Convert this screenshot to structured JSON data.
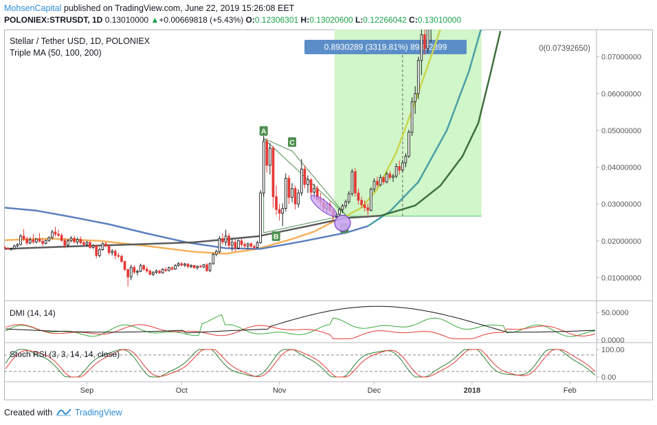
{
  "header": {
    "brand": "MohsenCapital",
    "published_text": "published on TradingView.com, June 22, 2019 15:26:08 EET",
    "symbol": "POLONIEX:STRUSDT, 1D",
    "last": "0.13010000",
    "change_arrow": "▲",
    "change": "+0.00669818 (+5.43%)",
    "o_label": "O:",
    "o_value": "0.12306301",
    "h_label": "H:",
    "h_value": "0.13020600",
    "l_label": "L:",
    "l_value": "0.12266042",
    "c_label": "C:",
    "c_value": "0.13010000"
  },
  "legend": {
    "title": "Stellar / Tether USD, 1D, POLONIEX",
    "indicator": "Triple MA (50, 100, 200)",
    "volume_readout": "0(0.07392650)"
  },
  "measure_label": "0.8930289 (3319.81%) 89302899",
  "pattern_labels": [
    "A",
    "B",
    "C",
    "D"
  ],
  "dmi_label": "DMI (14, 14)",
  "stoch_label": "Stoch RSI (3, 3, 14, 14, close)",
  "footer": {
    "created_with": "Created with",
    "brand": "TradingView"
  },
  "colors": {
    "up": "#26a69a",
    "down": "#ef5350",
    "candle_up": "#1b1b1b",
    "candle_down": "#e53935",
    "ma50": "#f7b05b",
    "ma100": "#5b7fbd",
    "ma200": "#5a5a5a",
    "ma50_late": "#c9d54a",
    "ma100_late": "#4a9fa6",
    "ma200_late": "#3c6e3c",
    "measure_fill": "#c8f5c0",
    "measure_label_bg": "#5b8ec8",
    "pattern_label": "#4f8f4f",
    "dmi_adx": "#111111",
    "dmi_plus": "#38a838",
    "dmi_minus": "#e53935",
    "stoch_k": "#2f7d2f",
    "stoch_d": "#e53935"
  },
  "chart_data": {
    "type": "candlestick",
    "y_ticks": [
      "0.07000000",
      "0.06000000",
      "0.05000000",
      "0.04000000",
      "0.03000000",
      "0.02000000",
      "0.01000000"
    ],
    "y_tick_values": [
      0.07,
      0.06,
      0.05,
      0.04,
      0.03,
      0.02,
      0.01
    ],
    "ylim": [
      0.0041,
      0.0774
    ],
    "x_ticks": [
      "Sep",
      "Oct",
      "Nov",
      "Dec",
      "2018",
      "Feb"
    ],
    "x_tick_dates": [
      "2017-09-01",
      "2017-10-01",
      "2017-11-01",
      "2017-12-01",
      "2018-01-01",
      "2018-02-01"
    ],
    "x_tick_bold": [
      false,
      false,
      false,
      false,
      true,
      false
    ],
    "xlim": [
      "2017-08-06",
      "2018-02-09"
    ],
    "candles": [
      [
        "2017-08-06",
        0.0182,
        0.0186,
        0.0178,
        0.018
      ],
      [
        "2017-08-07",
        0.018,
        0.0183,
        0.0176,
        0.0177
      ],
      [
        "2017-08-08",
        0.0177,
        0.0181,
        0.0173,
        0.0179
      ],
      [
        "2017-08-09",
        0.0179,
        0.019,
        0.0176,
        0.0186
      ],
      [
        "2017-08-10",
        0.0186,
        0.0194,
        0.0183,
        0.019
      ],
      [
        "2017-08-11",
        0.019,
        0.0218,
        0.0188,
        0.0213
      ],
      [
        "2017-08-12",
        0.0213,
        0.0232,
        0.02,
        0.0205
      ],
      [
        "2017-08-13",
        0.0205,
        0.0212,
        0.0189,
        0.0194
      ],
      [
        "2017-08-14",
        0.0194,
        0.021,
        0.0191,
        0.0203
      ],
      [
        "2017-08-15",
        0.0203,
        0.0218,
        0.0192,
        0.0197
      ],
      [
        "2017-08-16",
        0.0197,
        0.0208,
        0.0193,
        0.0205
      ],
      [
        "2017-08-17",
        0.0205,
        0.0221,
        0.0196,
        0.0199
      ],
      [
        "2017-08-18",
        0.0199,
        0.0206,
        0.0186,
        0.0193
      ],
      [
        "2017-08-19",
        0.0193,
        0.0204,
        0.019,
        0.0201
      ],
      [
        "2017-08-20",
        0.0201,
        0.0212,
        0.0197,
        0.0209
      ],
      [
        "2017-08-21",
        0.0209,
        0.023,
        0.0204,
        0.0224
      ],
      [
        "2017-08-22",
        0.0224,
        0.0238,
        0.0212,
        0.0218
      ],
      [
        "2017-08-23",
        0.0218,
        0.023,
        0.021,
        0.0215
      ],
      [
        "2017-08-24",
        0.0215,
        0.0221,
        0.0198,
        0.0201
      ],
      [
        "2017-08-25",
        0.0201,
        0.0207,
        0.018,
        0.0188
      ],
      [
        "2017-08-26",
        0.0188,
        0.0205,
        0.0184,
        0.02
      ],
      [
        "2017-08-27",
        0.02,
        0.0213,
        0.0196,
        0.0207
      ],
      [
        "2017-08-28",
        0.0207,
        0.0214,
        0.0193,
        0.0197
      ],
      [
        "2017-08-29",
        0.0197,
        0.0209,
        0.019,
        0.0204
      ],
      [
        "2017-08-30",
        0.0204,
        0.0212,
        0.019,
        0.0195
      ],
      [
        "2017-08-31",
        0.0195,
        0.0201,
        0.0186,
        0.019
      ],
      [
        "2017-09-01",
        0.019,
        0.02,
        0.0186,
        0.0196
      ],
      [
        "2017-09-02",
        0.0196,
        0.0199,
        0.0178,
        0.0182
      ],
      [
        "2017-09-03",
        0.0182,
        0.0191,
        0.0178,
        0.0187
      ],
      [
        "2017-09-04",
        0.0187,
        0.019,
        0.0152,
        0.016
      ],
      [
        "2017-09-05",
        0.016,
        0.0182,
        0.0155,
        0.0176
      ],
      [
        "2017-09-06",
        0.0176,
        0.0196,
        0.0173,
        0.0192
      ],
      [
        "2017-09-07",
        0.0192,
        0.0196,
        0.0183,
        0.0186
      ],
      [
        "2017-09-08",
        0.0186,
        0.0189,
        0.0162,
        0.0168
      ],
      [
        "2017-09-09",
        0.0168,
        0.0178,
        0.016,
        0.0172
      ],
      [
        "2017-09-10",
        0.0172,
        0.0176,
        0.015,
        0.016
      ],
      [
        "2017-09-11",
        0.016,
        0.0168,
        0.0154,
        0.0158
      ],
      [
        "2017-09-12",
        0.0158,
        0.0163,
        0.014,
        0.0144
      ],
      [
        "2017-09-13",
        0.0144,
        0.0146,
        0.0118,
        0.0122
      ],
      [
        "2017-09-14",
        0.0122,
        0.0124,
        0.0076,
        0.0102
      ],
      [
        "2017-09-15",
        0.0102,
        0.0135,
        0.0093,
        0.0128
      ],
      [
        "2017-09-16",
        0.0128,
        0.0134,
        0.011,
        0.0115
      ],
      [
        "2017-09-17",
        0.0115,
        0.0122,
        0.0106,
        0.0117
      ],
      [
        "2017-09-18",
        0.0117,
        0.0138,
        0.0115,
        0.0133
      ],
      [
        "2017-09-19",
        0.0133,
        0.0136,
        0.0119,
        0.0123
      ],
      [
        "2017-09-20",
        0.0123,
        0.013,
        0.0113,
        0.0118
      ],
      [
        "2017-09-21",
        0.0118,
        0.0122,
        0.0106,
        0.0109
      ],
      [
        "2017-09-22",
        0.0109,
        0.0118,
        0.0104,
        0.0114
      ],
      [
        "2017-09-23",
        0.0114,
        0.0122,
        0.011,
        0.0118
      ],
      [
        "2017-09-24",
        0.0118,
        0.0121,
        0.011,
        0.0113
      ],
      [
        "2017-09-25",
        0.0113,
        0.0126,
        0.0111,
        0.0122
      ],
      [
        "2017-09-26",
        0.0122,
        0.0128,
        0.0116,
        0.0119
      ],
      [
        "2017-09-27",
        0.0119,
        0.013,
        0.0117,
        0.0127
      ],
      [
        "2017-09-28",
        0.0127,
        0.013,
        0.012,
        0.0123
      ],
      [
        "2017-09-29",
        0.0123,
        0.0137,
        0.0121,
        0.0133
      ],
      [
        "2017-09-30",
        0.0133,
        0.0142,
        0.013,
        0.0138
      ],
      [
        "2017-10-01",
        0.0138,
        0.0143,
        0.0131,
        0.0134
      ],
      [
        "2017-10-02",
        0.0134,
        0.014,
        0.0129,
        0.0137
      ],
      [
        "2017-10-03",
        0.0137,
        0.0139,
        0.0126,
        0.013
      ],
      [
        "2017-10-04",
        0.013,
        0.0136,
        0.0126,
        0.0133
      ],
      [
        "2017-10-05",
        0.0133,
        0.0135,
        0.0124,
        0.0127
      ],
      [
        "2017-10-06",
        0.0127,
        0.0133,
        0.0122,
        0.0131
      ],
      [
        "2017-10-07",
        0.0131,
        0.0135,
        0.0127,
        0.0129
      ],
      [
        "2017-10-08",
        0.0129,
        0.0137,
        0.0126,
        0.0135
      ],
      [
        "2017-10-09",
        0.0135,
        0.014,
        0.0116,
        0.0119
      ],
      [
        "2017-10-10",
        0.0119,
        0.0141,
        0.0115,
        0.0138
      ],
      [
        "2017-10-11",
        0.0138,
        0.0168,
        0.0135,
        0.0163
      ],
      [
        "2017-10-12",
        0.0163,
        0.0176,
        0.0158,
        0.0171
      ],
      [
        "2017-10-13",
        0.0171,
        0.0213,
        0.0166,
        0.0206
      ],
      [
        "2017-10-14",
        0.0206,
        0.022,
        0.019,
        0.0197
      ],
      [
        "2017-10-15",
        0.0197,
        0.023,
        0.0186,
        0.0213
      ],
      [
        "2017-10-16",
        0.0213,
        0.0221,
        0.018,
        0.0188
      ],
      [
        "2017-10-17",
        0.0188,
        0.0206,
        0.0172,
        0.0196
      ],
      [
        "2017-10-18",
        0.0196,
        0.0204,
        0.0171,
        0.018
      ],
      [
        "2017-10-19",
        0.018,
        0.0204,
        0.0176,
        0.02
      ],
      [
        "2017-10-20",
        0.02,
        0.0206,
        0.0184,
        0.019
      ],
      [
        "2017-10-21",
        0.019,
        0.0197,
        0.018,
        0.0186
      ],
      [
        "2017-10-22",
        0.0186,
        0.0195,
        0.0178,
        0.0192
      ],
      [
        "2017-10-23",
        0.0192,
        0.0196,
        0.0182,
        0.0185
      ],
      [
        "2017-10-24",
        0.0185,
        0.019,
        0.0176,
        0.0182
      ],
      [
        "2017-10-25",
        0.0182,
        0.02,
        0.0179,
        0.0195
      ],
      [
        "2017-10-26",
        0.0195,
        0.0338,
        0.0192,
        0.033
      ],
      [
        "2017-10-27",
        0.033,
        0.0485,
        0.032,
        0.047
      ],
      [
        "2017-10-28",
        0.047,
        0.0478,
        0.0385,
        0.0405
      ],
      [
        "2017-10-29",
        0.0405,
        0.0465,
        0.038,
        0.0452
      ],
      [
        "2017-10-30",
        0.0452,
        0.0458,
        0.029,
        0.032
      ],
      [
        "2017-10-31",
        0.032,
        0.035,
        0.027,
        0.0285
      ],
      [
        "2017-11-01",
        0.0285,
        0.03,
        0.0255,
        0.0275
      ],
      [
        "2017-11-02",
        0.0275,
        0.0302,
        0.024,
        0.0288
      ],
      [
        "2017-11-03",
        0.0288,
        0.0383,
        0.028,
        0.037
      ],
      [
        "2017-11-04",
        0.037,
        0.0378,
        0.03,
        0.0318
      ],
      [
        "2017-11-05",
        0.0318,
        0.0357,
        0.0305,
        0.0342
      ],
      [
        "2017-11-06",
        0.0342,
        0.035,
        0.0285,
        0.03
      ],
      [
        "2017-11-07",
        0.03,
        0.034,
        0.029,
        0.033
      ],
      [
        "2017-11-08",
        0.033,
        0.0422,
        0.0322,
        0.0395
      ],
      [
        "2017-11-09",
        0.0395,
        0.0405,
        0.0342,
        0.0353
      ],
      [
        "2017-11-10",
        0.0353,
        0.0378,
        0.033,
        0.0366
      ],
      [
        "2017-11-11",
        0.0366,
        0.037,
        0.032,
        0.0332
      ],
      [
        "2017-11-12",
        0.0332,
        0.0355,
        0.0315,
        0.0342
      ],
      [
        "2017-11-13",
        0.0342,
        0.035,
        0.0304,
        0.0312
      ],
      [
        "2017-11-14",
        0.0312,
        0.033,
        0.0292,
        0.0305
      ],
      [
        "2017-11-15",
        0.0305,
        0.0316,
        0.028,
        0.0288
      ],
      [
        "2017-11-16",
        0.0288,
        0.0305,
        0.0275,
        0.0298
      ],
      [
        "2017-11-17",
        0.0298,
        0.0306,
        0.0274,
        0.0282
      ],
      [
        "2017-11-18",
        0.0282,
        0.029,
        0.0255,
        0.0266
      ],
      [
        "2017-11-19",
        0.0266,
        0.0278,
        0.0258,
        0.0272
      ],
      [
        "2017-11-20",
        0.0272,
        0.029,
        0.0268,
        0.0285
      ],
      [
        "2017-11-21",
        0.0285,
        0.03,
        0.0276,
        0.0295
      ],
      [
        "2017-11-22",
        0.0295,
        0.0312,
        0.0288,
        0.0306
      ],
      [
        "2017-11-23",
        0.0306,
        0.0335,
        0.03,
        0.0328
      ],
      [
        "2017-11-24",
        0.0328,
        0.0395,
        0.0322,
        0.0388
      ],
      [
        "2017-11-25",
        0.0388,
        0.0398,
        0.032,
        0.033
      ],
      [
        "2017-11-26",
        0.033,
        0.0342,
        0.0298,
        0.031
      ],
      [
        "2017-11-27",
        0.031,
        0.032,
        0.029,
        0.0298
      ],
      [
        "2017-11-28",
        0.0298,
        0.031,
        0.028,
        0.029
      ],
      [
        "2017-11-29",
        0.029,
        0.0302,
        0.027,
        0.0283
      ],
      [
        "2017-11-30",
        0.0283,
        0.0345,
        0.028,
        0.034
      ],
      [
        "2017-12-01",
        0.034,
        0.037,
        0.0332,
        0.0362
      ],
      [
        "2017-12-02",
        0.0362,
        0.0375,
        0.0345,
        0.0352
      ],
      [
        "2017-12-03",
        0.0352,
        0.038,
        0.0348,
        0.0372
      ],
      [
        "2017-12-04",
        0.0372,
        0.0376,
        0.0352,
        0.036
      ],
      [
        "2017-12-05",
        0.036,
        0.0388,
        0.0356,
        0.0382
      ],
      [
        "2017-12-06",
        0.0382,
        0.039,
        0.0366,
        0.0372
      ],
      [
        "2017-12-07",
        0.0372,
        0.0382,
        0.036,
        0.0376
      ],
      [
        "2017-12-08",
        0.0376,
        0.041,
        0.037,
        0.0402
      ],
      [
        "2017-12-09",
        0.0402,
        0.0418,
        0.038,
        0.0392
      ],
      [
        "2017-12-10",
        0.0392,
        0.042,
        0.0386,
        0.0412
      ],
      [
        "2017-12-11",
        0.0412,
        0.0438,
        0.04,
        0.043
      ],
      [
        "2017-12-12",
        0.043,
        0.0502,
        0.0425,
        0.0495
      ],
      [
        "2017-12-13",
        0.0495,
        0.059,
        0.0485,
        0.0578
      ],
      [
        "2017-12-14",
        0.0578,
        0.062,
        0.0545,
        0.06
      ],
      [
        "2017-12-15",
        0.06,
        0.07,
        0.0585,
        0.069
      ],
      [
        "2017-12-16",
        0.069,
        0.079,
        0.065,
        0.076
      ],
      [
        "2017-12-17",
        0.076,
        0.079,
        0.0705,
        0.0722
      ],
      [
        "2017-12-18",
        0.0722,
        0.079,
        0.071,
        0.078
      ],
      [
        "2017-12-19",
        0.078,
        0.079,
        0.074,
        0.079
      ]
    ],
    "series": [
      {
        "name": "MA 50"
      },
      {
        "name": "MA 100"
      },
      {
        "name": "MA 200"
      }
    ],
    "panes": [
      {
        "name": "DMI (14, 14)",
        "y_ticks": [
          "50.0000",
          "0.0000"
        ]
      },
      {
        "name": "Stoch RSI (3, 3, 14, 14, close)",
        "y_ticks": [
          "100.00",
          "0.00"
        ],
        "levels": [
          80,
          20
        ]
      }
    ]
  }
}
